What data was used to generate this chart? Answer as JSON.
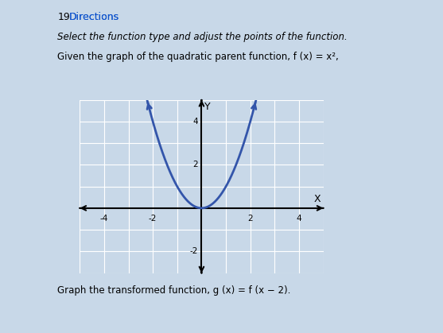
{
  "title_number": "19.",
  "title_link": "Directions",
  "subtitle1": "Select the function type and adjust the points of the function.",
  "subtitle2": "Given the graph of the quadratic parent function, f (x) = x²,",
  "bottom_text": "Graph the transformed function, g (x) = f (x − 2).",
  "xmin": -5,
  "xmax": 5,
  "ymin": -3,
  "ymax": 5,
  "xticks": [
    -4,
    -2,
    2,
    4
  ],
  "yticks": [
    -2,
    2,
    4
  ],
  "curve_color": "#3355aa",
  "curve_linewidth": 2.0,
  "background_color": "#b8cce4",
  "grid_color": "#ffffff",
  "axis_color": "#000000",
  "fig_background": "#c8d8e8"
}
